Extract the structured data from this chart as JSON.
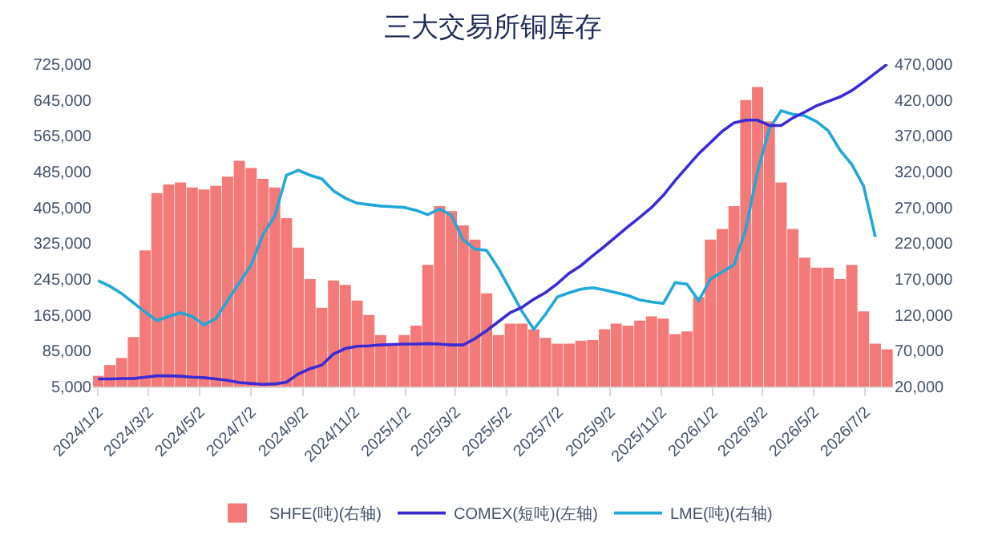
{
  "chart_data": {
    "type": "bar",
    "title": "三大交易所铜库存",
    "x": [
      "2024-01-02",
      "2024-01-16",
      "2024-01-30",
      "2024-02-13",
      "2024-02-27",
      "2024-03-12",
      "2024-03-26",
      "2024-04-09",
      "2024-04-23",
      "2024-05-07",
      "2024-05-21",
      "2024-06-04",
      "2024-06-18",
      "2024-07-02",
      "2024-07-16",
      "2024-07-30",
      "2024-08-13",
      "2024-08-27",
      "2024-09-10",
      "2024-09-24",
      "2024-10-08",
      "2024-10-22",
      "2024-11-05",
      "2024-11-19",
      "2024-12-03",
      "2024-12-17",
      "2024-12-31",
      "2025-01-14",
      "2025-01-28",
      "2025-02-11",
      "2025-02-25",
      "2025-03-11",
      "2025-03-25",
      "2025-04-08",
      "2025-04-22",
      "2025-05-06",
      "2025-05-20",
      "2025-06-03",
      "2025-06-17",
      "2025-07-01",
      "2025-07-15",
      "2025-07-29",
      "2025-08-12",
      "2025-08-26",
      "2025-09-09",
      "2025-09-23",
      "2025-10-07",
      "2025-10-21",
      "2025-11-04",
      "2025-11-18",
      "2025-12-02",
      "2025-12-16",
      "2025-12-30",
      "2026-01-13",
      "2026-01-27",
      "2026-02-10",
      "2026-02-24",
      "2026-03-10",
      "2026-03-24",
      "2026-04-07",
      "2026-04-21",
      "2026-05-05",
      "2026-05-19",
      "2026-06-02",
      "2026-06-16",
      "2026-06-30",
      "2026-07-14",
      "2026-07-28"
    ],
    "series": [
      {
        "name": "SHFE(吨)(右轴)",
        "axis": "y2",
        "color": "#f36b6b",
        "values": [
          35000,
          50000,
          60000,
          89000,
          210000,
          290000,
          302000,
          305000,
          298000,
          295000,
          300000,
          313000,
          335000,
          325000,
          310000,
          298000,
          255000,
          214000,
          170000,
          130000,
          168000,
          162000,
          140000,
          120000,
          92000,
          78000,
          92000,
          105000,
          190000,
          272000,
          265000,
          245000,
          225000,
          150000,
          92000,
          108000,
          108000,
          100000,
          88000,
          80000,
          80000,
          84000,
          85000,
          100000,
          108000,
          105000,
          112000,
          118000,
          115000,
          93000,
          97000,
          145000,
          225000,
          240000,
          272000,
          420000,
          438000,
          390000,
          305000,
          240000,
          200000,
          186000,
          186000,
          170000,
          190000,
          125000,
          80000,
          72000
        ]
      },
      {
        "name": "COMEX(短吨)(左轴)",
        "type": "line",
        "color": "#3b2bd4",
        "values": [
          22000,
          22000,
          23000,
          23000,
          26000,
          29000,
          29000,
          28000,
          26000,
          25000,
          22000,
          19000,
          14000,
          12000,
          10000,
          11000,
          15000,
          33000,
          45000,
          53000,
          78000,
          90000,
          95000,
          96000,
          98000,
          99000,
          100000,
          100000,
          101000,
          100000,
          98000,
          98000,
          112000,
          130000,
          150000,
          170000,
          182000,
          200000,
          215000,
          235000,
          258000,
          275000,
          297000,
          318000,
          340000,
          362000,
          383000,
          405000,
          432000,
          465000,
          495000,
          525000,
          550000,
          575000,
          594000,
          600000,
          600000,
          588000,
          588000,
          605000,
          618000,
          632000,
          642000,
          652000,
          666000,
          685000,
          705000,
          725000
        ]
      },
      {
        "name": "LME(吨)(右轴)",
        "type": "line",
        "axis": "y2",
        "color": "#1fa8d8",
        "values": [
          168000,
          160000,
          150000,
          137000,
          124000,
          112000,
          118000,
          123000,
          118000,
          106000,
          115000,
          140000,
          165000,
          190000,
          232000,
          258000,
          315000,
          322000,
          315000,
          310000,
          293000,
          283000,
          276000,
          274000,
          272000,
          271000,
          270000,
          266000,
          260000,
          268000,
          259000,
          225000,
          212000,
          210000,
          185000,
          155000,
          125000,
          100000,
          121000,
          145000,
          151000,
          156000,
          158000,
          155000,
          151000,
          147000,
          141000,
          138000,
          136000,
          165000,
          163000,
          140000,
          170000,
          180000,
          190000,
          240000,
          320000,
          380000,
          405000,
          400000,
          398000,
          390000,
          377000,
          350000,
          330000,
          300000,
          229000,
          null
        ]
      }
    ],
    "xlim": [
      "2023-12-27",
      "2026-08-04"
    ],
    "xticks": [
      {
        "value": "2024-01-02",
        "label": "2024/1/2"
      },
      {
        "value": "2024-03-02",
        "label": "2024/3/2"
      },
      {
        "value": "2024-05-02",
        "label": "2024/5/2"
      },
      {
        "value": "2024-07-02",
        "label": "2024/7/2"
      },
      {
        "value": "2024-09-02",
        "label": "2024/9/2"
      },
      {
        "value": "2024-11-02",
        "label": "2024/11/2"
      },
      {
        "value": "2025-01-02",
        "label": "2025/1/2"
      },
      {
        "value": "2025-03-02",
        "label": "2025/3/2"
      },
      {
        "value": "2025-05-02",
        "label": "2025/5/2"
      },
      {
        "value": "2025-07-02",
        "label": "2025/7/2"
      },
      {
        "value": "2025-09-02",
        "label": "2025/9/2"
      },
      {
        "value": "2025-11-02",
        "label": "2025/11/2"
      },
      {
        "value": "2026-01-02",
        "label": "2026/1/2"
      },
      {
        "value": "2026-03-02",
        "label": "2026/3/2"
      },
      {
        "value": "2026-05-02",
        "label": "2026/5/2"
      },
      {
        "value": "2026-07-02",
        "label": "2026/7/2"
      }
    ],
    "ylim": [
      5000,
      725000
    ],
    "yticks": [
      {
        "value": 5000,
        "label": "5,000"
      },
      {
        "value": 85000,
        "label": "85,000"
      },
      {
        "value": 165000,
        "label": "165,000"
      },
      {
        "value": 245000,
        "label": "245,000"
      },
      {
        "value": 325000,
        "label": "325,000"
      },
      {
        "value": 405000,
        "label": "405,000"
      },
      {
        "value": 485000,
        "label": "485,000"
      },
      {
        "value": 565000,
        "label": "565,000"
      },
      {
        "value": 645000,
        "label": "645,000"
      },
      {
        "value": 725000,
        "label": "725,000"
      }
    ],
    "y2lim": [
      20000,
      470000
    ],
    "y2ticks": [
      {
        "value": 20000,
        "label": "20,000"
      },
      {
        "value": 70000,
        "label": "70,000"
      },
      {
        "value": 120000,
        "label": "120,000"
      },
      {
        "value": 170000,
        "label": "170,000"
      },
      {
        "value": 220000,
        "label": "220,000"
      },
      {
        "value": 270000,
        "label": "270,000"
      },
      {
        "value": 320000,
        "label": "320,000"
      },
      {
        "value": 370000,
        "label": "370,000"
      },
      {
        "value": 420000,
        "label": "420,000"
      },
      {
        "value": 470000,
        "label": "470,000"
      }
    ],
    "legend": "bottom",
    "marker": "none",
    "line_style": "solid"
  }
}
